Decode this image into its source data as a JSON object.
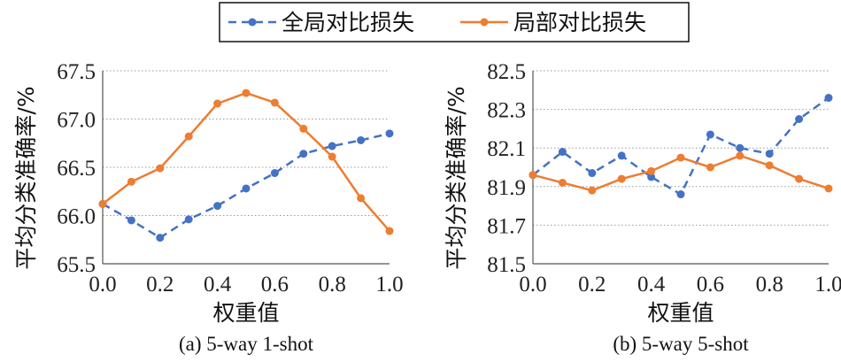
{
  "legend": {
    "series": [
      {
        "name": "全局对比损失",
        "color": "#4472C4",
        "dash": true
      },
      {
        "name": "局部对比损失",
        "color": "#ED7D31",
        "dash": false
      }
    ]
  },
  "chart_data": [
    {
      "type": "line",
      "caption": "(a) 5-way 1-shot",
      "xlabel": "权重值",
      "ylabel": "平均分类准确率/%",
      "x": [
        0.0,
        0.1,
        0.2,
        0.3,
        0.4,
        0.5,
        0.6,
        0.7,
        0.8,
        0.9,
        1.0
      ],
      "xticks": [
        "0.0",
        "0.2",
        "0.4",
        "0.6",
        "0.8",
        "1.0"
      ],
      "yticks": [
        "65.5",
        "66.0",
        "66.5",
        "67.0",
        "67.5"
      ],
      "ylim": [
        65.5,
        67.5
      ],
      "xlim": [
        0.0,
        1.0
      ],
      "grid": true,
      "series": [
        {
          "name": "全局对比损失",
          "values": [
            66.12,
            65.95,
            65.77,
            65.96,
            66.1,
            66.28,
            66.44,
            66.64,
            66.72,
            66.78,
            66.85
          ]
        },
        {
          "name": "局部对比损失",
          "values": [
            66.12,
            66.35,
            66.49,
            66.82,
            67.16,
            67.27,
            67.17,
            66.9,
            66.61,
            66.18,
            65.84
          ]
        }
      ]
    },
    {
      "type": "line",
      "caption": "(b) 5-way 5-shot",
      "xlabel": "权重值",
      "ylabel": "平均分类准确率/%",
      "x": [
        0.0,
        0.1,
        0.2,
        0.3,
        0.4,
        0.5,
        0.6,
        0.7,
        0.8,
        0.9,
        1.0
      ],
      "xticks": [
        "0.0",
        "0.2",
        "0.4",
        "0.6",
        "0.8",
        "1.0"
      ],
      "yticks": [
        "81.5",
        "81.7",
        "81.9",
        "82.1",
        "82.3",
        "82.5"
      ],
      "ylim": [
        81.5,
        82.5
      ],
      "xlim": [
        0.0,
        1.0
      ],
      "grid": true,
      "series": [
        {
          "name": "全局对比损失",
          "values": [
            81.96,
            82.08,
            81.97,
            82.06,
            81.95,
            81.86,
            82.17,
            82.1,
            82.07,
            82.25,
            82.36
          ]
        },
        {
          "name": "局部对比损失",
          "values": [
            81.96,
            81.92,
            81.88,
            81.94,
            81.98,
            82.05,
            82.0,
            82.06,
            82.01,
            81.94,
            81.89
          ]
        }
      ]
    }
  ]
}
